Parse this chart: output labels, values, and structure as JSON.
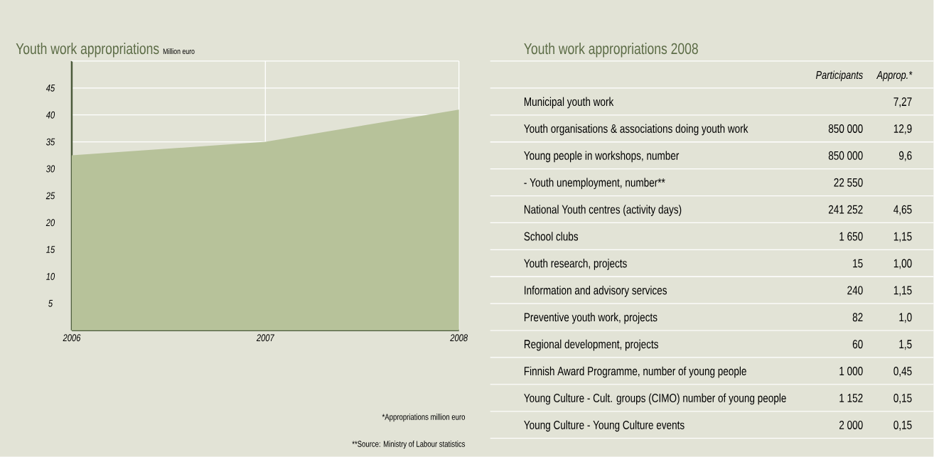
{
  "chart_data": [
    {
      "type": "area",
      "title": "Youth work appropriations",
      "subtitle": "Million euro",
      "x": [
        2006,
        2007,
        2008
      ],
      "values": [
        32.5,
        35,
        41
      ],
      "color": "#b7c29a",
      "xlim": [
        2006,
        2008
      ],
      "ylim": [
        0,
        50
      ],
      "xticks": [
        2006,
        2007,
        2008
      ],
      "yticks": [
        5,
        10,
        15,
        20,
        25,
        30,
        35,
        40,
        45
      ],
      "grid": true
    },
    {
      "type": "other",
      "title": "Youth work appropriations 2008",
      "categories": [
        "Municipal youth work",
        "Youth organisations & associations doing youth work",
        "Young people in workshops, number",
        "- Youth unemployment, number**",
        "National Youth centres (activity days)",
        "School clubs",
        "Youth research, projects",
        "Information and advisory services",
        "Preventive youth work, projects",
        "Regional development, projects",
        "Finnish Award Programme, number of young people",
        "Young Culture - Cult. groups (CIMO) number of young people",
        "Young Culture - Young Culture events"
      ],
      "series": [
        {
          "name": "Participants",
          "values": [
            null,
            850000,
            850000,
            22550,
            241252,
            1650,
            15,
            240,
            82,
            60,
            1000,
            1152,
            2000
          ],
          "value_labels": [
            null,
            "850 000",
            "850 000",
            "22 550",
            "241 252",
            "1 650",
            "15",
            "240",
            "82",
            "60",
            "1 000",
            "1 152",
            "2 000"
          ]
        },
        {
          "name": "Approp.*",
          "values": [
            7.27,
            12.9,
            9.6,
            null,
            4.65,
            1.15,
            1.0,
            1.15,
            1.0,
            1.5,
            0.45,
            0.15,
            0.15
          ],
          "value_labels": [
            "7,27",
            "12,9",
            "9,6",
            null,
            "4,65",
            "1,15",
            "1,00",
            "1,15",
            "1,0",
            "1,5",
            "0,45",
            "0,15",
            "0,15"
          ]
        }
      ],
      "annotations": [
        "*Appropriations million euro",
        "**Source: Ministry of Labour statistics"
      ]
    }
  ]
}
